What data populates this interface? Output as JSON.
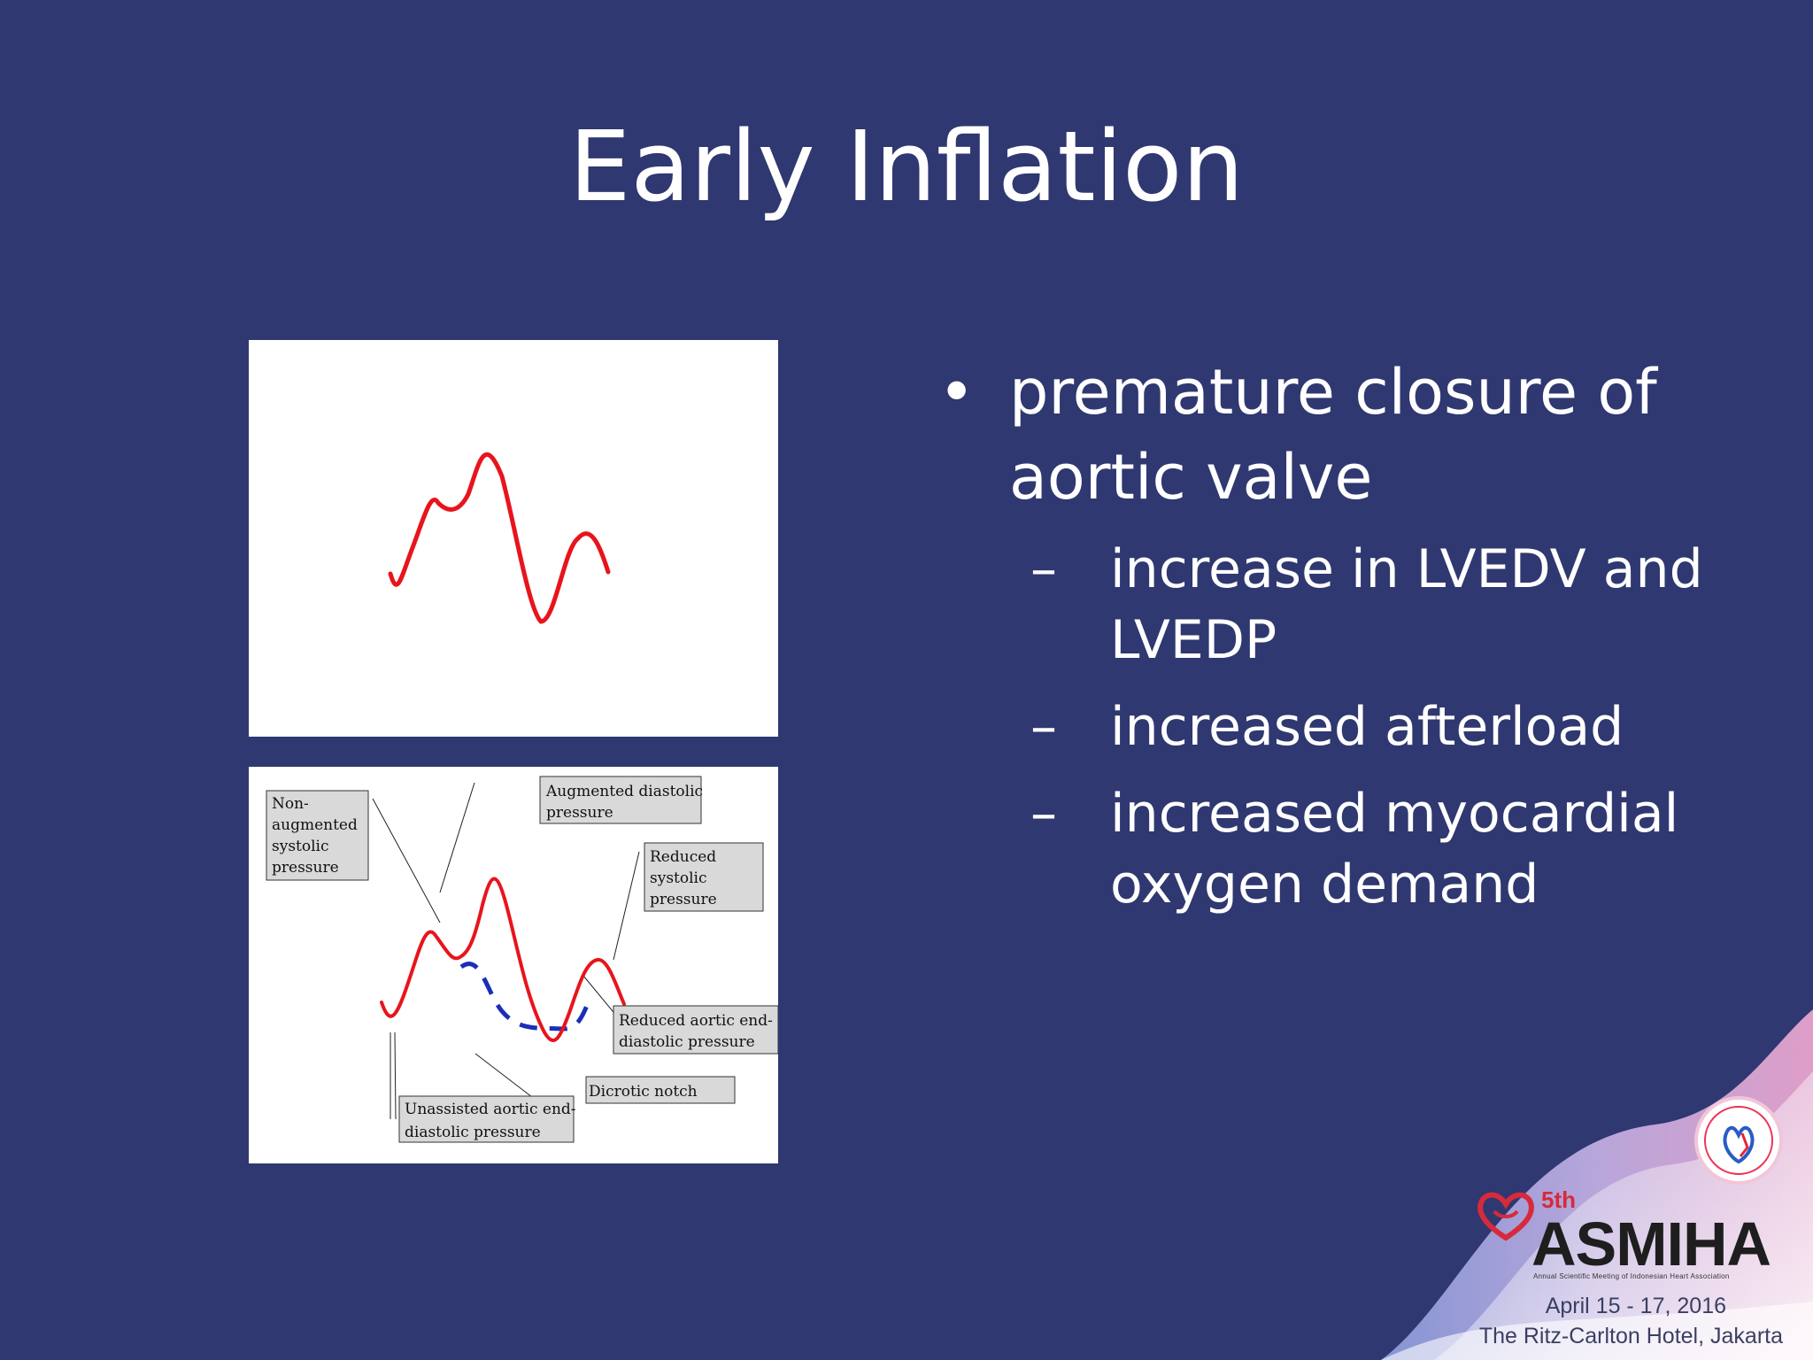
{
  "slide": {
    "title": "Early Inflation"
  },
  "bullets": [
    {
      "text": "premature closure of aortic valve",
      "sub": [
        "increase in LVEDV and LVEDP",
        "increased afterload",
        "increased myocardial oxygen demand"
      ]
    }
  ],
  "diagram": {
    "labels": {
      "non_augmented_1": "Non-",
      "non_augmented_2": "augmented",
      "non_augmented_3": "systolic",
      "non_augmented_4": "pressure",
      "augmented_1": "Augmented diastolic",
      "augmented_2": "pressure",
      "reduced_sys_1": "Reduced",
      "reduced_sys_2": "systolic",
      "reduced_sys_3": "pressure",
      "reduced_aortic_1": "Reduced aortic end-",
      "reduced_aortic_2": "diastolic pressure",
      "dicrotic": "Dicrotic notch",
      "unassisted_1": "Unassisted aortic end-",
      "unassisted_2": "diastolic pressure"
    },
    "colors": {
      "waveform": "#e8141c",
      "baseline": "#1a2fb8",
      "label_box": "#d9d9d9"
    }
  },
  "footer": {
    "brand_sup": "5th",
    "brand": "ASMIHA",
    "brand_sub": "Annual Scientific Meeting of Indonesian Heart Association",
    "date": "April 15 - 17, 2016",
    "venue": "The Ritz-Carlton Hotel, Jakarta"
  }
}
